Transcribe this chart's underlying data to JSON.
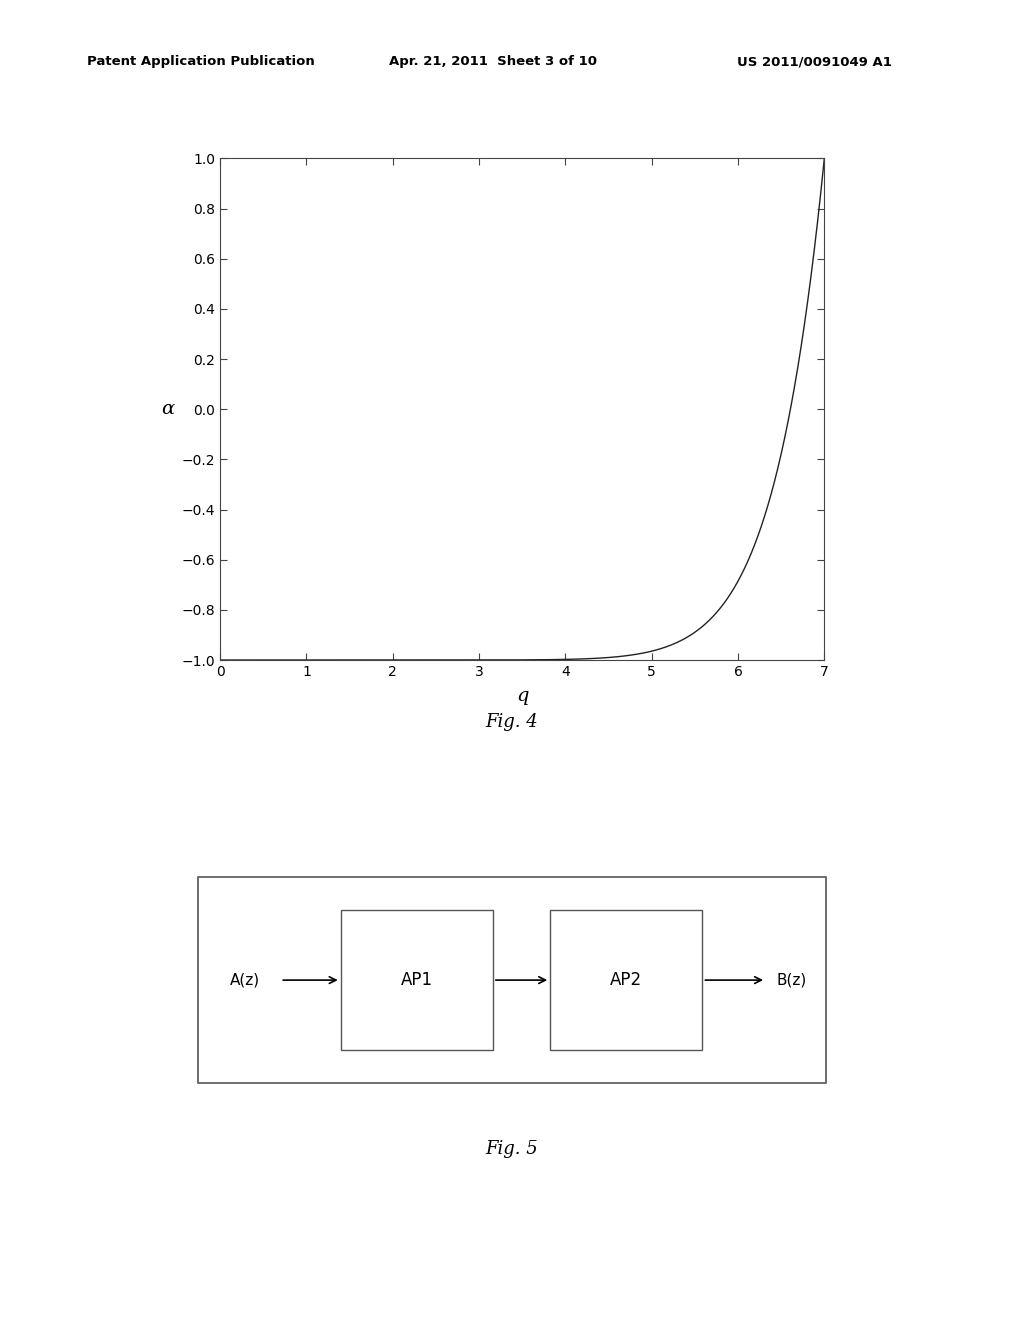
{
  "header_left": "Patent Application Publication",
  "header_mid": "Apr. 21, 2011  Sheet 3 of 10",
  "header_right": "US 2011/0091049 A1",
  "fig4_xlabel": "q",
  "fig4_ylabel": "α",
  "fig4_xlim": [
    0,
    7
  ],
  "fig4_ylim": [
    -1,
    1
  ],
  "fig4_xticks": [
    0,
    1,
    2,
    3,
    4,
    5,
    6,
    7
  ],
  "fig4_yticks": [
    -1,
    -0.8,
    -0.6,
    -0.4,
    -0.2,
    0,
    0.2,
    0.4,
    0.6,
    0.8,
    1
  ],
  "fig4_caption": "Fig. 4",
  "fig5_caption": "Fig. 5",
  "fig5_blocks": [
    "AP1",
    "AP2"
  ],
  "fig5_input": "A(z)",
  "fig5_output": "B(z)",
  "curve_exponent": 12,
  "curve_max_q": 7,
  "background_color": "#ffffff",
  "line_color": "#222222",
  "header_color": "#000000"
}
